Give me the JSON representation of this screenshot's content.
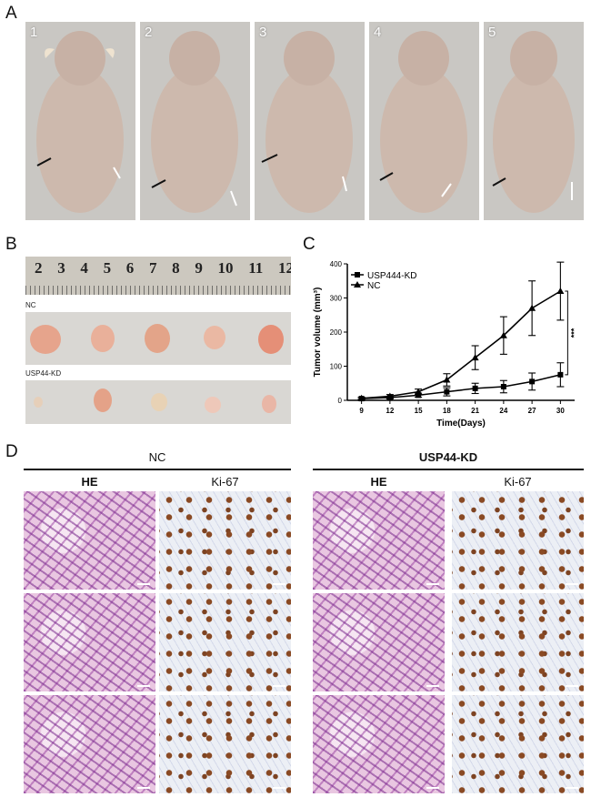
{
  "panels": {
    "a": "A",
    "b": "B",
    "c": "C",
    "d": "D"
  },
  "mice": [
    "1",
    "2",
    "3",
    "4",
    "5"
  ],
  "tumor_photo": {
    "ruler_numbers": [
      "2",
      "3",
      "4",
      "5",
      "6",
      "7",
      "8",
      "9",
      "10",
      "11",
      "12"
    ],
    "nc_label": "NC",
    "kd_label": "USP44-KD"
  },
  "histology": {
    "group_nc": "NC",
    "group_kd": "USP44-KD",
    "he_label": "HE",
    "ki67_label": "Ki-67"
  },
  "chart_data": {
    "type": "line",
    "xlabel": "Time(Days)",
    "ylabel": "Tumor volume (mm³)",
    "x": [
      9,
      12,
      15,
      18,
      21,
      24,
      27,
      30
    ],
    "xlim": [
      7.5,
      31.5
    ],
    "ylim": [
      0,
      400
    ],
    "yticks": [
      0,
      100,
      200,
      300,
      400
    ],
    "legend_position": "top-left",
    "significance": "***",
    "series": [
      {
        "name": "USP444-KD",
        "marker": "square",
        "values": [
          5,
          8,
          15,
          25,
          35,
          40,
          55,
          75
        ],
        "errors": [
          3,
          4,
          6,
          12,
          15,
          18,
          25,
          35
        ]
      },
      {
        "name": "NC",
        "marker": "triangle",
        "values": [
          6,
          12,
          25,
          60,
          125,
          190,
          270,
          320
        ],
        "errors": [
          3,
          5,
          8,
          18,
          35,
          55,
          80,
          85
        ]
      }
    ]
  }
}
